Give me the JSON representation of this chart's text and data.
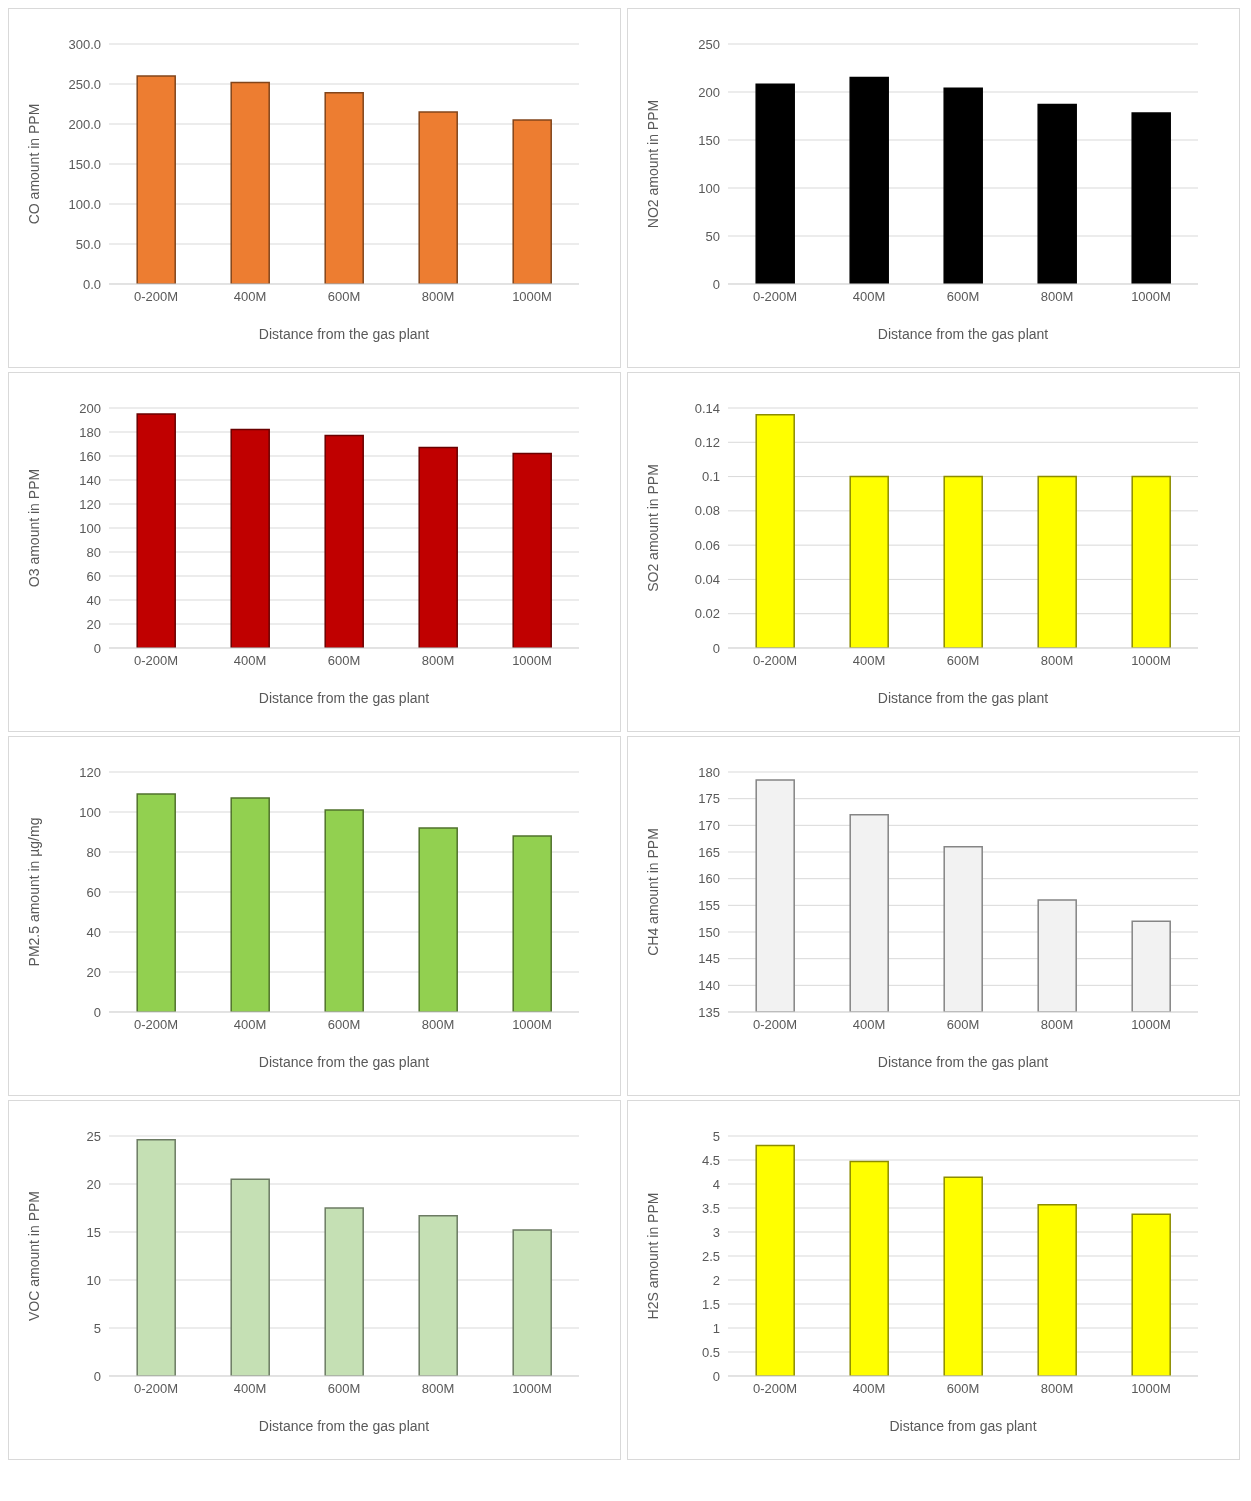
{
  "chart_data": [
    {
      "type": "bar",
      "xlabel": "Distance from the gas plant",
      "ylabel": "CO amount in PPM",
      "categories": [
        "0-200M",
        "400M",
        "600M",
        "800M",
        "1000M"
      ],
      "values": [
        260,
        252,
        239,
        215,
        205
      ],
      "color": "#ed7d31",
      "ylim": [
        0,
        300
      ],
      "yticks": [
        {
          "value": 0,
          "label": "0.0"
        },
        {
          "value": 50,
          "label": "50.0"
        },
        {
          "value": 100,
          "label": "100.0"
        },
        {
          "value": 150,
          "label": "150.0"
        },
        {
          "value": 200,
          "label": "200.0"
        },
        {
          "value": 250,
          "label": "250.0"
        },
        {
          "value": 300,
          "label": "300.0"
        }
      ],
      "grid": "y"
    },
    {
      "type": "bar",
      "xlabel": "Distance from the gas plant",
      "ylabel": "NO2  amount in PPM",
      "categories": [
        "0-200M",
        "400M",
        "600M",
        "800M",
        "1000M"
      ],
      "values": [
        208,
        215,
        204,
        187,
        178
      ],
      "color": "#000000",
      "ylim": [
        0,
        250
      ],
      "yticks": [
        0,
        50,
        100,
        150,
        200,
        250
      ],
      "grid": "y"
    },
    {
      "type": "bar",
      "xlabel": "Distance from the gas plant",
      "ylabel": "O3 amount in PPM",
      "categories": [
        "0-200M",
        "400M",
        "600M",
        "800M",
        "1000M"
      ],
      "values": [
        195,
        182,
        177,
        167,
        162
      ],
      "color": "#c00000",
      "ylim": [
        0,
        200
      ],
      "yticks": [
        0,
        20,
        40,
        60,
        80,
        100,
        120,
        140,
        160,
        180,
        200
      ],
      "grid": "y"
    },
    {
      "type": "bar",
      "xlabel": "Distance from the gas plant",
      "ylabel": "SO2 amount in PPM",
      "categories": [
        "0-200M",
        "400M",
        "600M",
        "800M",
        "1000M"
      ],
      "values": [
        0.136,
        0.1,
        0.1,
        0.1,
        0.1
      ],
      "color": "#ffff00",
      "ylim": [
        0,
        0.14
      ],
      "yticks": [
        0,
        0.02,
        0.04,
        0.06,
        0.08,
        0.1,
        0.12,
        0.14
      ],
      "grid": "y"
    },
    {
      "type": "bar",
      "xlabel": "Distance from the gas plant",
      "ylabel": "PM2.5 amount in µg/mg",
      "categories": [
        "0-200M",
        "400M",
        "600M",
        "800M",
        "1000M"
      ],
      "values": [
        109,
        107,
        101,
        92,
        88
      ],
      "color": "#92d050",
      "ylim": [
        0,
        120
      ],
      "yticks": [
        0,
        20,
        40,
        60,
        80,
        100,
        120
      ],
      "grid": "y"
    },
    {
      "type": "bar",
      "xlabel": "Distance from the gas plant",
      "ylabel": "CH4 amount in PPM",
      "categories": [
        "0-200M",
        "400M",
        "600M",
        "800M",
        "1000M"
      ],
      "values": [
        178.5,
        172,
        166,
        156,
        152
      ],
      "color": "#f2f2f2",
      "ylim": [
        135,
        180
      ],
      "yticks": [
        135,
        140,
        145,
        150,
        155,
        160,
        165,
        170,
        175,
        180
      ],
      "grid": "y"
    },
    {
      "type": "bar",
      "xlabel": "Distance from the gas plant",
      "ylabel": "VOC amount in PPM",
      "categories": [
        "0-200M",
        "400M",
        "600M",
        "800M",
        "1000M"
      ],
      "values": [
        24.6,
        20.5,
        17.5,
        16.7,
        15.2
      ],
      "color": "#c5e0b4",
      "ylim": [
        0,
        25
      ],
      "yticks": [
        0,
        5,
        10,
        15,
        20,
        25
      ],
      "grid": "y"
    },
    {
      "type": "bar",
      "xlabel": "Distance from gas plant",
      "ylabel": "H2S amount in PPM",
      "categories": [
        "0-200M",
        "400M",
        "600M",
        "800M",
        "1000M"
      ],
      "values": [
        4.8,
        4.47,
        4.14,
        3.57,
        3.37
      ],
      "color": "#ffff00",
      "ylim": [
        0,
        5
      ],
      "yticks": [
        0,
        0.5,
        1,
        1.5,
        2,
        2.5,
        3,
        3.5,
        4,
        4.5,
        5
      ],
      "grid": "y"
    }
  ]
}
